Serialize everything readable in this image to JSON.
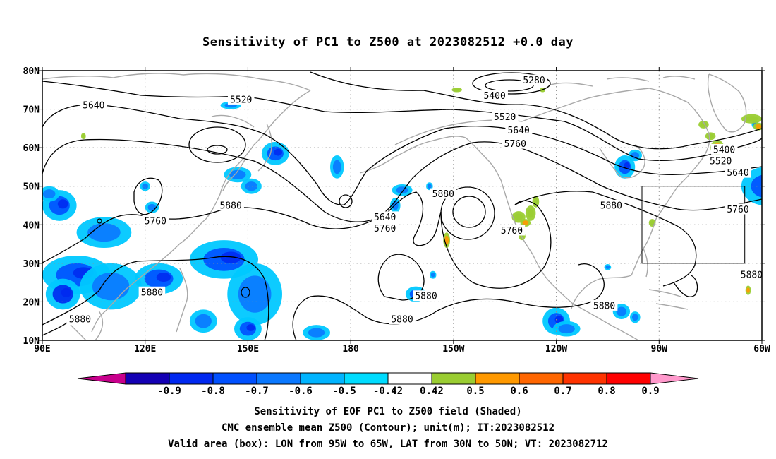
{
  "title": "Sensitivity of PC1 to Z500 at 2023082512 +0.0 day",
  "captions": {
    "line1": "Sensitivity of EOF PC1 to Z500 field (Shaded)",
    "line2": "CMC ensemble mean Z500 (Contour); unit(m); IT:2023082512",
    "line3": "Valid area (box): LON from 95W to 65W, LAT from 30N to 50N; VT: 2023082712"
  },
  "map": {
    "lon_range": [
      90,
      300
    ],
    "lat_range": [
      10,
      80
    ],
    "lat_ticks": [
      {
        "lat": 80,
        "label": "80N"
      },
      {
        "lat": 70,
        "label": "70N"
      },
      {
        "lat": 60,
        "label": "60N"
      },
      {
        "lat": 50,
        "label": "50N"
      },
      {
        "lat": 40,
        "label": "40N"
      },
      {
        "lat": 30,
        "label": "30N"
      },
      {
        "lat": 20,
        "label": "20N"
      },
      {
        "lat": 10,
        "label": "10N"
      }
    ],
    "lon_ticks": [
      {
        "lon": 90,
        "label": "90E"
      },
      {
        "lon": 120,
        "label": "120E"
      },
      {
        "lon": 150,
        "label": "150E"
      },
      {
        "lon": 180,
        "label": "180"
      },
      {
        "lon": 210,
        "label": "150W"
      },
      {
        "lon": 240,
        "label": "120W"
      },
      {
        "lon": 270,
        "label": "90W"
      },
      {
        "lon": 300,
        "label": "60W"
      }
    ],
    "grid_dotted": true,
    "valid_box": {
      "lon_min": 265,
      "lon_max": 295,
      "lat_min": 30,
      "lat_max": 50
    },
    "contour_labels": [
      {
        "text": "5280",
        "lon": 233.5,
        "lat": 77.5
      },
      {
        "text": "5400",
        "lon": 222,
        "lat": 73.5
      },
      {
        "text": "5520",
        "lon": 148,
        "lat": 72.5
      },
      {
        "text": "5640",
        "lon": 105,
        "lat": 71
      },
      {
        "text": "5520",
        "lon": 225,
        "lat": 68
      },
      {
        "text": "5640",
        "lon": 229,
        "lat": 64.5
      },
      {
        "text": "5760",
        "lon": 228,
        "lat": 61
      },
      {
        "text": "5400",
        "lon": 289,
        "lat": 59.5
      },
      {
        "text": "5520",
        "lon": 288,
        "lat": 56.5
      },
      {
        "text": "5640",
        "lon": 293,
        "lat": 53.5
      },
      {
        "text": "5880",
        "lon": 207,
        "lat": 48
      },
      {
        "text": "5880",
        "lon": 145,
        "lat": 45
      },
      {
        "text": "5880",
        "lon": 256,
        "lat": 45
      },
      {
        "text": "5760",
        "lon": 293,
        "lat": 44
      },
      {
        "text": "5640",
        "lon": 190,
        "lat": 42
      },
      {
        "text": "5760",
        "lon": 123,
        "lat": 41
      },
      {
        "text": "5760",
        "lon": 190,
        "lat": 39
      },
      {
        "text": "5760",
        "lon": 227,
        "lat": 38.5
      },
      {
        "text": "5880",
        "lon": 297,
        "lat": 27
      },
      {
        "text": "5880",
        "lon": 122,
        "lat": 22.5
      },
      {
        "text": "5880",
        "lon": 202,
        "lat": 21.5
      },
      {
        "text": "5880",
        "lon": 254,
        "lat": 19
      },
      {
        "text": "5880",
        "lon": 195,
        "lat": 15.5
      },
      {
        "text": "5880",
        "lon": 101,
        "lat": 15.5
      }
    ],
    "shading_patches": [
      {
        "lon": 95,
        "lat": 45,
        "rx": 5,
        "ry": 4,
        "value": -0.6
      },
      {
        "lon": 92,
        "lat": 48,
        "rx": 3,
        "ry": 2,
        "value": -0.5
      },
      {
        "lon": 108,
        "lat": 38,
        "rx": 8,
        "ry": 4,
        "value": -0.5
      },
      {
        "lon": 100,
        "lat": 27,
        "rx": 10,
        "ry": 5,
        "value": -0.6
      },
      {
        "lon": 110,
        "lat": 24,
        "rx": 9,
        "ry": 6,
        "value": -0.5
      },
      {
        "lon": 96,
        "lat": 22,
        "rx": 5,
        "ry": 4,
        "value": -0.7
      },
      {
        "lon": 124,
        "lat": 26,
        "rx": 7,
        "ry": 4,
        "value": -0.6
      },
      {
        "lon": 122,
        "lat": 44.5,
        "rx": 2,
        "ry": 1.5,
        "value": -0.5
      },
      {
        "lon": 120,
        "lat": 50,
        "rx": 1.5,
        "ry": 1.2,
        "value": -0.5
      },
      {
        "lon": 143,
        "lat": 31,
        "rx": 10,
        "ry": 5,
        "value": -0.6
      },
      {
        "lon": 152,
        "lat": 22,
        "rx": 8,
        "ry": 8,
        "value": -0.5
      },
      {
        "lon": 137,
        "lat": 15,
        "rx": 4,
        "ry": 3,
        "value": -0.5
      },
      {
        "lon": 150,
        "lat": 13,
        "rx": 4,
        "ry": 3,
        "value": -0.6
      },
      {
        "lon": 170,
        "lat": 12,
        "rx": 4,
        "ry": 2,
        "value": -0.5
      },
      {
        "lon": 147,
        "lat": 53,
        "rx": 4,
        "ry": 2,
        "value": -0.5
      },
      {
        "lon": 151,
        "lat": 50,
        "rx": 3,
        "ry": 2,
        "value": -0.5
      },
      {
        "lon": 158,
        "lat": 58.5,
        "rx": 4,
        "ry": 3,
        "value": -0.6
      },
      {
        "lon": 145,
        "lat": 71,
        "rx": 3,
        "ry": 1,
        "value": -0.5
      },
      {
        "lon": 176,
        "lat": 55,
        "rx": 2,
        "ry": 3,
        "value": -0.5
      },
      {
        "lon": 195,
        "lat": 49,
        "rx": 3,
        "ry": 1.5,
        "value": -0.5
      },
      {
        "lon": 193,
        "lat": 45,
        "rx": 1.5,
        "ry": 2,
        "value": -0.5
      },
      {
        "lon": 203,
        "lat": 50,
        "rx": 1,
        "ry": 1,
        "value": -0.5
      },
      {
        "lon": 199,
        "lat": 22,
        "rx": 3,
        "ry": 2,
        "value": -0.6
      },
      {
        "lon": 204,
        "lat": 27,
        "rx": 1,
        "ry": 1,
        "value": -0.5
      },
      {
        "lon": 240,
        "lat": 15,
        "rx": 4,
        "ry": 3.5,
        "value": -0.6
      },
      {
        "lon": 243,
        "lat": 13,
        "rx": 4,
        "ry": 2,
        "value": -0.5
      },
      {
        "lon": 259,
        "lat": 17.5,
        "rx": 2.5,
        "ry": 2,
        "value": -0.5
      },
      {
        "lon": 263,
        "lat": 16,
        "rx": 1.5,
        "ry": 1.5,
        "value": -0.5
      },
      {
        "lon": 255,
        "lat": 29,
        "rx": 1,
        "ry": 0.8,
        "value": -0.5
      },
      {
        "lon": 260,
        "lat": 55,
        "rx": 3,
        "ry": 3,
        "value": -0.6
      },
      {
        "lon": 263,
        "lat": 58,
        "rx": 2,
        "ry": 1.5,
        "value": -0.5
      },
      {
        "lon": 301,
        "lat": 50,
        "rx": 7,
        "ry": 5,
        "value": -0.6
      },
      {
        "lon": 307,
        "lat": 42,
        "rx": 6,
        "ry": 5,
        "value": -0.7
      },
      {
        "lon": 307,
        "lat": 47,
        "rx": 4,
        "ry": 4,
        "value": -0.5
      },
      {
        "lon": 304,
        "lat": 36,
        "rx": 4,
        "ry": 3,
        "value": -0.5
      },
      {
        "lon": 316,
        "lat": 76,
        "rx": 2,
        "ry": 2,
        "value": -0.5
      },
      {
        "lon": 314,
        "lat": 56,
        "rx": 2,
        "ry": 4,
        "value": -0.5
      },
      {
        "lon": 298,
        "lat": 66,
        "rx": 1,
        "ry": 1,
        "value": -0.5
      },
      {
        "lon": 316,
        "lat": 15,
        "rx": 1,
        "ry": 0.8,
        "value": -0.5
      },
      {
        "lon": 229,
        "lat": 42,
        "rx": 2,
        "ry": 1.5,
        "value": 0.5
      },
      {
        "lon": 232.5,
        "lat": 43,
        "rx": 1.5,
        "ry": 2,
        "value": 0.5
      },
      {
        "lon": 230,
        "lat": 37,
        "rx": 1,
        "ry": 1,
        "value": 0.5
      },
      {
        "lon": 231,
        "lat": 40.5,
        "rx": 1.5,
        "ry": 1,
        "value": 0.6
      },
      {
        "lon": 234,
        "lat": 46,
        "rx": 1,
        "ry": 1.5,
        "value": 0.5
      },
      {
        "lon": 208,
        "lat": 36,
        "rx": 1,
        "ry": 2,
        "value": 0.6
      },
      {
        "lon": 287,
        "lat": 60,
        "rx": 2,
        "ry": 2,
        "value": 0.6
      },
      {
        "lon": 285,
        "lat": 63,
        "rx": 1.5,
        "ry": 1,
        "value": 0.5
      },
      {
        "lon": 297,
        "lat": 67.5,
        "rx": 3,
        "ry": 1.2,
        "value": 0.5
      },
      {
        "lon": 299,
        "lat": 65.5,
        "rx": 1.5,
        "ry": 1,
        "value": 0.6
      },
      {
        "lon": 283,
        "lat": 66,
        "rx": 1.5,
        "ry": 1,
        "value": 0.5
      },
      {
        "lon": 268,
        "lat": 40.5,
        "rx": 1,
        "ry": 1,
        "value": 0.5
      },
      {
        "lon": 296,
        "lat": 23,
        "rx": 0.8,
        "ry": 1.2,
        "value": 0.6
      },
      {
        "lon": 102,
        "lat": 63,
        "rx": 0.7,
        "ry": 0.8,
        "value": 0.5
      },
      {
        "lon": 236,
        "lat": 75,
        "rx": 0.8,
        "ry": 0.6,
        "value": 0.5
      },
      {
        "lon": 211,
        "lat": 75,
        "rx": 1.5,
        "ry": 0.6,
        "value": 0.5
      }
    ]
  },
  "colorbar": {
    "colors": [
      "#c8008c",
      "#1400b4",
      "#0028f0",
      "#0050ff",
      "#0a78ff",
      "#00b4ff",
      "#00dcff",
      "#ffffff",
      "#9acd32",
      "#ff9900",
      "#ff6600",
      "#ff3300",
      "#ff0000",
      "#ff99cc"
    ],
    "tick_labels": [
      "-0.9",
      "-0.8",
      "-0.7",
      "-0.6",
      "-0.5",
      "-0.42",
      "0.42",
      "0.5",
      "0.6",
      "0.7",
      "0.8",
      "0.9"
    ]
  }
}
